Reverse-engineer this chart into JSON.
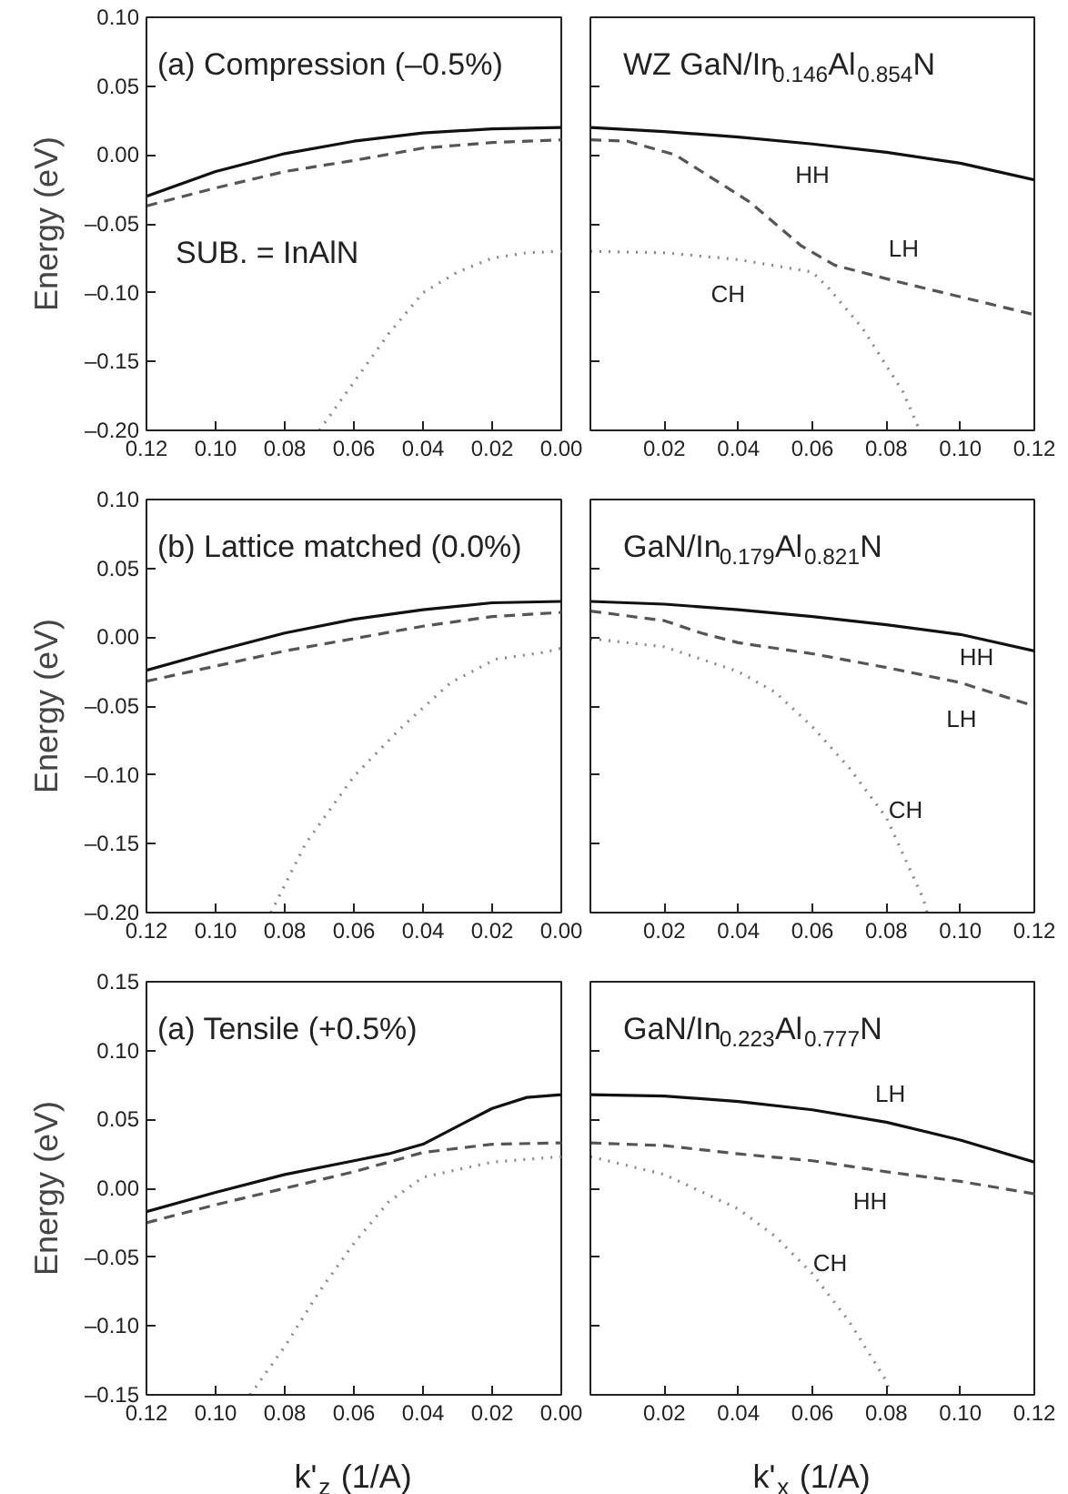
{
  "chart_data": [
    {
      "type": "line",
      "title": "(a) Compression (–0.5%)",
      "ylabel": "Energy (eV)",
      "xlim": [
        0.12,
        0
      ],
      "ylim": [
        -0.2,
        0.1
      ],
      "xticks": [
        {
          "value": 0.12,
          "label": "0.12"
        },
        {
          "value": 0.1,
          "label": "0.10"
        },
        {
          "value": 0.08,
          "label": "0.08"
        },
        {
          "value": 0.06,
          "label": "0.06"
        },
        {
          "value": 0.04,
          "label": "0.04"
        },
        {
          "value": 0.02,
          "label": "0.02"
        },
        {
          "value": 0,
          "label": "0.00"
        }
      ],
      "yticks": [
        {
          "value": 0.1,
          "label": "0.10"
        },
        {
          "value": 0.05,
          "label": "0.05"
        },
        {
          "value": 0,
          "label": "0.00"
        },
        {
          "value": -0.05,
          "label": "–0.05"
        },
        {
          "value": -0.1,
          "label": "–0.10"
        },
        {
          "value": -0.15,
          "label": "–0.15"
        },
        {
          "value": -0.2,
          "label": "–0.20"
        }
      ],
      "series": [
        {
          "color": "#111111",
          "line_style": "solid",
          "x": [
            0.12,
            0.1,
            0.08,
            0.06,
            0.04,
            0.02,
            0
          ],
          "values": [
            -0.03,
            -0.012,
            0.001,
            0.01,
            0.016,
            0.019,
            0.02
          ]
        },
        {
          "color": "#555555",
          "line_style": "dashed",
          "x": [
            0.12,
            0.1,
            0.08,
            0.06,
            0.04,
            0.02,
            0
          ],
          "values": [
            -0.037,
            -0.024,
            -0.012,
            -0.004,
            0.005,
            0.009,
            0.011
          ]
        },
        {
          "color": "#888888",
          "line_style": "dotted",
          "x": [
            0.07,
            0.06,
            0.05,
            0.04,
            0.03,
            0.02,
            0.01,
            0
          ],
          "values": [
            -0.2,
            -0.165,
            -0.13,
            -0.1,
            -0.085,
            -0.075,
            -0.071,
            -0.07
          ]
        }
      ],
      "annotations": [
        "SUB. = InAlN"
      ],
      "grid": false,
      "marker": "none"
    },
    {
      "type": "line",
      "title": "WZ GaN/In$_{0.146}$Al$_{0.854}$N",
      "xlim": [
        0,
        0.12
      ],
      "ylim": [
        -0.2,
        0.1
      ],
      "tick_labels": "x",
      "xticks": [
        {
          "value": 0,
          "label": null
        },
        {
          "value": 0.02,
          "label": "0.02"
        },
        {
          "value": 0.04,
          "label": "0.04"
        },
        {
          "value": 0.06,
          "label": "0.06"
        },
        {
          "value": 0.08,
          "label": "0.08"
        },
        {
          "value": 0.1,
          "label": "0.10"
        },
        {
          "value": 0.12,
          "label": "0.12"
        }
      ],
      "yticks": [
        0.1,
        0.05,
        0,
        -0.05,
        -0.1,
        -0.15,
        -0.2
      ],
      "series": [
        {
          "color": "#111111",
          "line_style": "solid",
          "x": [
            0,
            0.02,
            0.04,
            0.06,
            0.08,
            0.1,
            0.12
          ],
          "values": [
            0.02,
            0.017,
            0.013,
            0.008,
            0.002,
            -0.006,
            -0.018
          ]
        },
        {
          "color": "#555555",
          "line_style": "dashed",
          "x": [
            0,
            0.01,
            0.023,
            0.043,
            0.057,
            0.066,
            0.083,
            0.1,
            0.12
          ],
          "values": [
            0.011,
            0.01,
            0.0,
            -0.034,
            -0.066,
            -0.08,
            -0.092,
            -0.103,
            -0.116
          ]
        },
        {
          "color": "#888888",
          "line_style": "dotted",
          "x": [
            0,
            0.02,
            0.04,
            0.06,
            0.0645,
            0.0736,
            0.0845,
            0.089
          ],
          "values": [
            -0.07,
            -0.071,
            -0.076,
            -0.085,
            -0.097,
            -0.126,
            -0.172,
            -0.2
          ]
        }
      ],
      "annotations": [
        "HH",
        "LH",
        "CH"
      ],
      "grid": false,
      "marker": "none"
    },
    {
      "type": "line",
      "title": "(b) Lattice matched (0.0%)",
      "ylabel": "Energy (eV)",
      "xlim": [
        0.12,
        0
      ],
      "ylim": [
        -0.2,
        0.1
      ],
      "xticks": [
        {
          "value": 0.12,
          "label": "0.12"
        },
        {
          "value": 0.1,
          "label": "0.10"
        },
        {
          "value": 0.08,
          "label": "0.08"
        },
        {
          "value": 0.06,
          "label": "0.06"
        },
        {
          "value": 0.04,
          "label": "0.04"
        },
        {
          "value": 0.02,
          "label": "0.02"
        },
        {
          "value": 0,
          "label": "0.00"
        }
      ],
      "yticks": [
        {
          "value": 0.1,
          "label": "0.10"
        },
        {
          "value": 0.05,
          "label": "0.05"
        },
        {
          "value": 0,
          "label": "0.00"
        },
        {
          "value": -0.05,
          "label": "–0.05"
        },
        {
          "value": -0.1,
          "label": "–0.10"
        },
        {
          "value": -0.15,
          "label": "–0.15"
        },
        {
          "value": -0.2,
          "label": "–0.20"
        }
      ],
      "series": [
        {
          "color": "#111111",
          "line_style": "solid",
          "x": [
            0.12,
            0.1,
            0.08,
            0.06,
            0.04,
            0.02,
            0
          ],
          "values": [
            -0.024,
            -0.01,
            0.003,
            0.013,
            0.02,
            0.025,
            0.026
          ]
        },
        {
          "color": "#555555",
          "line_style": "dashed",
          "x": [
            0.12,
            0.1,
            0.08,
            0.06,
            0.04,
            0.02,
            0
          ],
          "values": [
            -0.032,
            -0.021,
            -0.01,
            -0.001,
            0.008,
            0.015,
            0.018
          ]
        },
        {
          "color": "#888888",
          "line_style": "dotted",
          "x": [
            0.084,
            0.074,
            0.06,
            0.046,
            0.032,
            0.019,
            0.005,
            0
          ],
          "values": [
            -0.2,
            -0.15,
            -0.101,
            -0.065,
            -0.033,
            -0.016,
            -0.011,
            -0.008
          ]
        }
      ],
      "grid": false,
      "marker": "none"
    },
    {
      "type": "line",
      "title": "GaN/In$_{0.179}$Al$_{0.821}$N",
      "xlim": [
        0,
        0.12
      ],
      "ylim": [
        -0.2,
        0.1
      ],
      "tick_labels": "x",
      "xticks": [
        {
          "value": 0,
          "label": null
        },
        {
          "value": 0.02,
          "label": "0.02"
        },
        {
          "value": 0.04,
          "label": "0.04"
        },
        {
          "value": 0.06,
          "label": "0.06"
        },
        {
          "value": 0.08,
          "label": "0.08"
        },
        {
          "value": 0.1,
          "label": "0.10"
        },
        {
          "value": 0.12,
          "label": "0.12"
        }
      ],
      "yticks": [
        0.1,
        0.05,
        0,
        -0.05,
        -0.1,
        -0.15,
        -0.2
      ],
      "series": [
        {
          "color": "#111111",
          "line_style": "solid",
          "x": [
            0,
            0.02,
            0.04,
            0.06,
            0.08,
            0.1,
            0.12
          ],
          "values": [
            0.026,
            0.024,
            0.02,
            0.015,
            0.009,
            0.002,
            -0.01
          ]
        },
        {
          "color": "#555555",
          "line_style": "dashed",
          "x": [
            0,
            0.02,
            0.03,
            0.04,
            0.06,
            0.08,
            0.1,
            0.12
          ],
          "values": [
            0.019,
            0.012,
            0.003,
            -0.004,
            -0.012,
            -0.022,
            -0.033,
            -0.05
          ]
        },
        {
          "color": "#888888",
          "line_style": "dotted",
          "x": [
            0,
            0.02,
            0.04,
            0.05,
            0.06,
            0.07,
            0.08,
            0.09,
            0.091
          ],
          "values": [
            -0.001,
            -0.007,
            -0.025,
            -0.04,
            -0.065,
            -0.095,
            -0.131,
            -0.19,
            -0.2
          ]
        }
      ],
      "annotations": [
        "HH",
        "LH",
        "CH"
      ],
      "grid": false,
      "marker": "none"
    },
    {
      "type": "line",
      "title": "(a) Tensile (+0.5%)",
      "ylabel": "Energy (eV)",
      "xlabel": "k'$_{z}$ (1/A)",
      "xlim": [
        0.12,
        0
      ],
      "ylim": [
        -0.15,
        0.15
      ],
      "xticks": [
        {
          "value": 0.12,
          "label": "0.12"
        },
        {
          "value": 0.1,
          "label": "0.10"
        },
        {
          "value": 0.08,
          "label": "0.08"
        },
        {
          "value": 0.06,
          "label": "0.06"
        },
        {
          "value": 0.04,
          "label": "0.04"
        },
        {
          "value": 0.02,
          "label": "0.02"
        },
        {
          "value": 0,
          "label": "0.00"
        }
      ],
      "yticks": [
        {
          "value": 0.15,
          "label": "0.15"
        },
        {
          "value": 0.1,
          "label": "0.10"
        },
        {
          "value": 0.05,
          "label": "0.05"
        },
        {
          "value": 0,
          "label": "0.00"
        },
        {
          "value": -0.05,
          "label": "–0.05"
        },
        {
          "value": -0.1,
          "label": "–0.10"
        },
        {
          "value": -0.15,
          "label": "–0.15"
        }
      ],
      "series": [
        {
          "color": "#111111",
          "line_style": "solid",
          "x": [
            0.12,
            0.1,
            0.08,
            0.06,
            0.05,
            0.04,
            0.03,
            0.02,
            0.01,
            0
          ],
          "values": [
            -0.017,
            -0.003,
            0.01,
            0.02,
            0.025,
            0.032,
            0.045,
            0.058,
            0.066,
            0.068
          ]
        },
        {
          "color": "#555555",
          "line_style": "dashed",
          "x": [
            0.12,
            0.1,
            0.08,
            0.06,
            0.04,
            0.02,
            0
          ],
          "values": [
            -0.025,
            -0.012,
            0.0,
            0.012,
            0.026,
            0.032,
            0.033
          ]
        },
        {
          "color": "#888888",
          "line_style": "dotted",
          "x": [
            0.09,
            0.08,
            0.07,
            0.06,
            0.05,
            0.04,
            0.02,
            0
          ],
          "values": [
            -0.15,
            -0.115,
            -0.075,
            -0.04,
            -0.01,
            0.008,
            0.019,
            0.023
          ]
        }
      ],
      "grid": false,
      "marker": "none"
    },
    {
      "type": "line",
      "title": "GaN/In$_{0.223}$Al$_{0.777}$N",
      "xlabel": "k'$_{x}$ (1/A)",
      "xlim": [
        0,
        0.12
      ],
      "ylim": [
        -0.15,
        0.15
      ],
      "tick_labels": "x",
      "xticks": [
        {
          "value": 0,
          "label": null
        },
        {
          "value": 0.02,
          "label": "0.02"
        },
        {
          "value": 0.04,
          "label": "0.04"
        },
        {
          "value": 0.06,
          "label": "0.06"
        },
        {
          "value": 0.08,
          "label": "0.08"
        },
        {
          "value": 0.1,
          "label": "0.10"
        },
        {
          "value": 0.12,
          "label": "0.12"
        }
      ],
      "yticks": [
        0.15,
        0.1,
        0.05,
        0,
        -0.05,
        -0.1,
        -0.15
      ],
      "series": [
        {
          "color": "#111111",
          "line_style": "solid",
          "x": [
            0,
            0.02,
            0.04,
            0.06,
            0.08,
            0.1,
            0.12
          ],
          "values": [
            0.068,
            0.067,
            0.063,
            0.057,
            0.048,
            0.035,
            0.019
          ]
        },
        {
          "color": "#555555",
          "line_style": "dashed",
          "x": [
            0,
            0.02,
            0.04,
            0.06,
            0.08,
            0.1,
            0.12
          ],
          "values": [
            0.033,
            0.031,
            0.025,
            0.02,
            0.012,
            0.005,
            -0.004
          ]
        },
        {
          "color": "#888888",
          "line_style": "dotted",
          "x": [
            0,
            0.02,
            0.04,
            0.05,
            0.06,
            0.07,
            0.08,
            0.081
          ],
          "values": [
            0.023,
            0.01,
            -0.015,
            -0.035,
            -0.062,
            -0.097,
            -0.14,
            -0.15
          ]
        }
      ],
      "annotations": [
        "LH",
        "HH",
        "CH"
      ],
      "grid": false,
      "marker": "none"
    }
  ]
}
